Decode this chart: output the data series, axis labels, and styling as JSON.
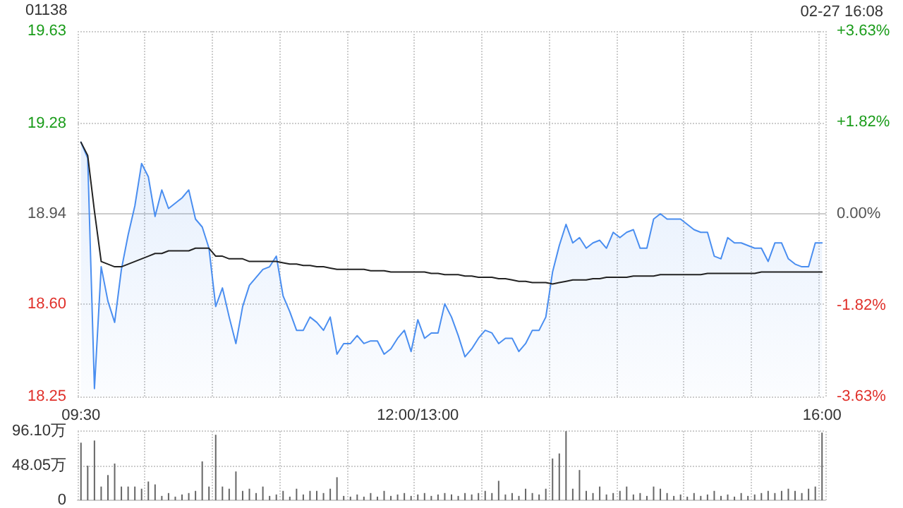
{
  "chart_data": [
    {
      "type": "area",
      "title": "01138",
      "annotations": [
        "02-27 16:08"
      ],
      "categories": [
        "09:30",
        null,
        null,
        null,
        null,
        null,
        null,
        null,
        null,
        null,
        null,
        null,
        null,
        null,
        null,
        null,
        null,
        null,
        null,
        null,
        null,
        null,
        null,
        null,
        null,
        null,
        null,
        null,
        null,
        null,
        null,
        null,
        null,
        null,
        null,
        null,
        null,
        null,
        null,
        null,
        null,
        null,
        null,
        null,
        null,
        null,
        null,
        null,
        null,
        null,
        "12:00/13:00",
        null,
        null,
        null,
        null,
        null,
        null,
        null,
        null,
        null,
        null,
        null,
        null,
        null,
        null,
        null,
        null,
        null,
        null,
        null,
        null,
        null,
        null,
        null,
        null,
        null,
        null,
        null,
        null,
        null,
        null,
        null,
        null,
        null,
        null,
        null,
        null,
        null,
        null,
        null,
        null,
        null,
        null,
        null,
        null,
        null,
        null,
        null,
        null,
        null,
        null,
        null,
        null,
        null,
        null,
        null,
        null,
        null,
        null,
        null,
        "16:00"
      ],
      "ylim": [
        18.25,
        19.63
      ],
      "yticks": [
        18.25,
        {
          "value": 18.6,
          "label": "18.60"
        },
        18.94,
        19.28,
        19.63
      ],
      "y2lim": [
        -3.63,
        3.63
      ],
      "y2ticks": [
        {
          "value": -3.63,
          "label": "-3.63%"
        },
        {
          "value": -1.82,
          "label": "-1.82%"
        },
        {
          "value": 0,
          "label": "0.00%"
        },
        {
          "value": 1.82,
          "label": "+1.82%"
        },
        {
          "value": 3.63,
          "label": "+3.63%"
        }
      ],
      "grid": true,
      "marker": "none",
      "line_style": "solid",
      "series": [
        {
          "color": "#4a8ef0",
          "values": [
            19.21,
            19.15,
            18.28,
            18.74,
            18.61,
            18.53,
            18.73,
            18.86,
            18.97,
            19.13,
            19.08,
            18.93,
            19.03,
            18.96,
            18.98,
            19.0,
            19.03,
            18.92,
            18.89,
            18.81,
            18.59,
            18.66,
            18.55,
            18.45,
            18.59,
            18.67,
            18.7,
            18.73,
            18.74,
            18.78,
            18.63,
            18.57,
            18.5,
            18.5,
            18.55,
            18.53,
            18.5,
            18.55,
            18.41,
            18.45,
            18.45,
            18.48,
            18.45,
            18.46,
            18.46,
            18.41,
            18.43,
            18.47,
            18.5,
            18.42,
            18.54,
            18.47,
            18.49,
            18.49,
            18.6,
            18.55,
            18.48,
            18.4,
            18.43,
            18.47,
            18.5,
            18.49,
            18.45,
            18.47,
            18.47,
            18.42,
            18.45,
            18.5,
            18.5,
            18.55,
            18.72,
            18.82,
            18.9,
            18.83,
            18.85,
            18.81,
            18.83,
            18.84,
            18.81,
            18.87,
            18.85,
            18.87,
            18.88,
            18.81,
            18.81,
            18.92,
            18.94,
            18.92,
            18.92,
            18.92,
            18.9,
            18.88,
            18.87,
            18.87,
            18.78,
            18.77,
            18.85,
            18.83,
            18.83,
            18.82,
            18.81,
            18.81,
            18.76,
            18.83,
            18.83,
            18.77,
            18.75,
            18.74,
            18.74,
            18.83,
            18.83
          ]
        },
        {
          "type": "line",
          "color": "#222222",
          "values": [
            19.21,
            19.16,
            18.95,
            18.76,
            18.75,
            18.74,
            18.74,
            18.75,
            18.76,
            18.77,
            18.78,
            18.79,
            18.79,
            18.8,
            18.8,
            18.8,
            18.8,
            18.81,
            18.81,
            18.81,
            18.78,
            18.78,
            18.77,
            18.77,
            18.77,
            18.76,
            18.76,
            18.76,
            18.76,
            18.76,
            18.755,
            18.75,
            18.75,
            18.745,
            18.745,
            18.74,
            18.74,
            18.735,
            18.73,
            18.73,
            18.73,
            18.73,
            18.73,
            18.725,
            18.725,
            18.725,
            18.72,
            18.72,
            18.72,
            18.72,
            18.72,
            18.72,
            18.715,
            18.715,
            18.71,
            18.71,
            18.71,
            18.705,
            18.705,
            18.7,
            18.7,
            18.7,
            18.695,
            18.695,
            18.69,
            18.685,
            18.685,
            18.68,
            18.68,
            18.68,
            18.675,
            18.68,
            18.685,
            18.69,
            18.69,
            18.69,
            18.695,
            18.695,
            18.7,
            18.7,
            18.7,
            18.7,
            18.705,
            18.705,
            18.705,
            18.705,
            18.71,
            18.71,
            18.71,
            18.71,
            18.71,
            18.71,
            18.71,
            18.715,
            18.715,
            18.715,
            18.715,
            18.715,
            18.715,
            18.715,
            18.715,
            18.72,
            18.72,
            18.72,
            18.72,
            18.72,
            18.72,
            18.72,
            18.72,
            18.72,
            18.72
          ]
        }
      ]
    },
    {
      "type": "bar",
      "tick_labels": "y",
      "grid": true,
      "color": "#666666",
      "categories": [
        null,
        null,
        null,
        null,
        null,
        null,
        null,
        null,
        null,
        null,
        null,
        null,
        null,
        null,
        null,
        null,
        null,
        null,
        null,
        null,
        null,
        null,
        null,
        null,
        null,
        null,
        null,
        null,
        null,
        null,
        null,
        null,
        null,
        null,
        null,
        null,
        null,
        null,
        null,
        null,
        null,
        null,
        null,
        null,
        null,
        null,
        null,
        null,
        null,
        null,
        null,
        null,
        null,
        null,
        null,
        null,
        null,
        null,
        null,
        null,
        null,
        null,
        null,
        null,
        null,
        null,
        null,
        null,
        null,
        null,
        null,
        null,
        null,
        null,
        null,
        null,
        null,
        null,
        null,
        null,
        null,
        null,
        null,
        null,
        null,
        null,
        null,
        null,
        null,
        null,
        null,
        null,
        null,
        null,
        null,
        null,
        null,
        null,
        null,
        null,
        null,
        null,
        null,
        null,
        null,
        null,
        null,
        null,
        null,
        null,
        null
      ],
      "ylim": [
        0,
        96.1
      ],
      "yticks": [
        0,
        {
          "value": 48.05,
          "label": "48.05万"
        },
        {
          "value": 96.1,
          "label": "96.10万"
        }
      ],
      "values": [
        80,
        48,
        83,
        19,
        35,
        51,
        19,
        19,
        19,
        16,
        26,
        22,
        6,
        10,
        5,
        8,
        10,
        13,
        54,
        19,
        91,
        19,
        16,
        40,
        13,
        16,
        10,
        19,
        6,
        8,
        13,
        5,
        16,
        8,
        13,
        13,
        10,
        16,
        32,
        6,
        5,
        8,
        5,
        10,
        5,
        13,
        6,
        8,
        10,
        6,
        8,
        10,
        6,
        8,
        10,
        8,
        6,
        10,
        8,
        10,
        13,
        10,
        27,
        8,
        10,
        6,
        16,
        10,
        8,
        16,
        58,
        65,
        96,
        16,
        42,
        13,
        10,
        19,
        8,
        10,
        13,
        19,
        8,
        10,
        6,
        19,
        16,
        10,
        6,
        8,
        5,
        10,
        6,
        8,
        13,
        6,
        8,
        5,
        10,
        6,
        8,
        10,
        13,
        10,
        13,
        16,
        13,
        10,
        16,
        19,
        94
      ]
    }
  ]
}
